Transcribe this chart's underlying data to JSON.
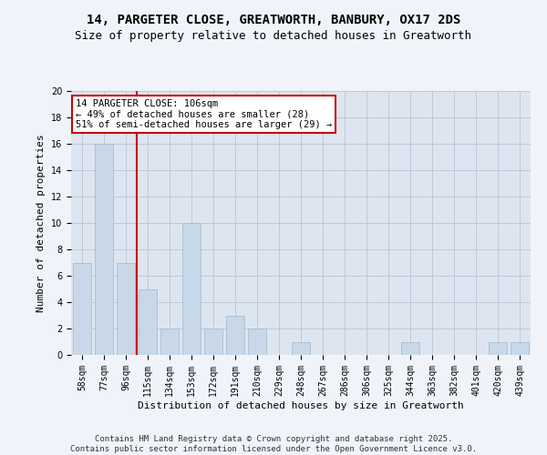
{
  "title": "14, PARGETER CLOSE, GREATWORTH, BANBURY, OX17 2DS",
  "subtitle": "Size of property relative to detached houses in Greatworth",
  "xlabel": "Distribution of detached houses by size in Greatworth",
  "ylabel": "Number of detached properties",
  "categories": [
    "58sqm",
    "77sqm",
    "96sqm",
    "115sqm",
    "134sqm",
    "153sqm",
    "172sqm",
    "191sqm",
    "210sqm",
    "229sqm",
    "248sqm",
    "267sqm",
    "286sqm",
    "306sqm",
    "325sqm",
    "344sqm",
    "363sqm",
    "382sqm",
    "401sqm",
    "420sqm",
    "439sqm"
  ],
  "values": [
    7,
    16,
    7,
    5,
    2,
    10,
    2,
    3,
    2,
    0,
    1,
    0,
    0,
    0,
    0,
    1,
    0,
    0,
    0,
    1,
    1
  ],
  "bar_color": "#c8d8e8",
  "bar_edge_color": "#a0b8cc",
  "red_line_x": 2.5,
  "annotation_text": "14 PARGETER CLOSE: 106sqm\n← 49% of detached houses are smaller (28)\n51% of semi-detached houses are larger (29) →",
  "annotation_box_color": "#ffffff",
  "annotation_box_edge": "#cc0000",
  "red_line_color": "#cc0000",
  "ylim": [
    0,
    20
  ],
  "yticks": [
    0,
    2,
    4,
    6,
    8,
    10,
    12,
    14,
    16,
    18,
    20
  ],
  "grid_color": "#c0c8d8",
  "background_color": "#dde6f0",
  "fig_background": "#f0f4fa",
  "footer_line1": "Contains HM Land Registry data © Crown copyright and database right 2025.",
  "footer_line2": "Contains public sector information licensed under the Open Government Licence v3.0.",
  "title_fontsize": 10,
  "subtitle_fontsize": 9,
  "axis_label_fontsize": 8,
  "tick_fontsize": 7,
  "annotation_fontsize": 7.5,
  "footer_fontsize": 6.5
}
